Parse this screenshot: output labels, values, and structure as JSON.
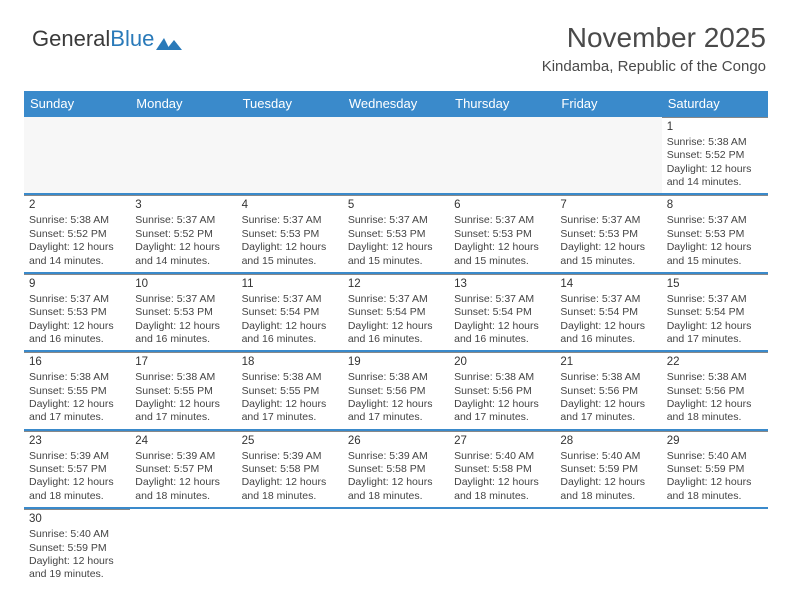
{
  "logo": {
    "part1": "General",
    "part2": "Blue"
  },
  "title": "November 2025",
  "subtitle": "Kindamba, Republic of the Congo",
  "colors": {
    "header_bg": "#3a8acb",
    "header_text": "#ffffff",
    "week_divider": "#3a8acb",
    "cell_border": "#888888",
    "text": "#444444",
    "logo_blue": "#2a7ab9"
  },
  "day_headers": [
    "Sunday",
    "Monday",
    "Tuesday",
    "Wednesday",
    "Thursday",
    "Friday",
    "Saturday"
  ],
  "weeks": [
    [
      {
        "empty": true
      },
      {
        "empty": true
      },
      {
        "empty": true
      },
      {
        "empty": true
      },
      {
        "empty": true
      },
      {
        "empty": true
      },
      {
        "day": "1",
        "sunrise": "Sunrise: 5:38 AM",
        "sunset": "Sunset: 5:52 PM",
        "daylight1": "Daylight: 12 hours",
        "daylight2": "and 14 minutes."
      }
    ],
    [
      {
        "day": "2",
        "sunrise": "Sunrise: 5:38 AM",
        "sunset": "Sunset: 5:52 PM",
        "daylight1": "Daylight: 12 hours",
        "daylight2": "and 14 minutes."
      },
      {
        "day": "3",
        "sunrise": "Sunrise: 5:37 AM",
        "sunset": "Sunset: 5:52 PM",
        "daylight1": "Daylight: 12 hours",
        "daylight2": "and 14 minutes."
      },
      {
        "day": "4",
        "sunrise": "Sunrise: 5:37 AM",
        "sunset": "Sunset: 5:53 PM",
        "daylight1": "Daylight: 12 hours",
        "daylight2": "and 15 minutes."
      },
      {
        "day": "5",
        "sunrise": "Sunrise: 5:37 AM",
        "sunset": "Sunset: 5:53 PM",
        "daylight1": "Daylight: 12 hours",
        "daylight2": "and 15 minutes."
      },
      {
        "day": "6",
        "sunrise": "Sunrise: 5:37 AM",
        "sunset": "Sunset: 5:53 PM",
        "daylight1": "Daylight: 12 hours",
        "daylight2": "and 15 minutes."
      },
      {
        "day": "7",
        "sunrise": "Sunrise: 5:37 AM",
        "sunset": "Sunset: 5:53 PM",
        "daylight1": "Daylight: 12 hours",
        "daylight2": "and 15 minutes."
      },
      {
        "day": "8",
        "sunrise": "Sunrise: 5:37 AM",
        "sunset": "Sunset: 5:53 PM",
        "daylight1": "Daylight: 12 hours",
        "daylight2": "and 15 minutes."
      }
    ],
    [
      {
        "day": "9",
        "sunrise": "Sunrise: 5:37 AM",
        "sunset": "Sunset: 5:53 PM",
        "daylight1": "Daylight: 12 hours",
        "daylight2": "and 16 minutes."
      },
      {
        "day": "10",
        "sunrise": "Sunrise: 5:37 AM",
        "sunset": "Sunset: 5:53 PM",
        "daylight1": "Daylight: 12 hours",
        "daylight2": "and 16 minutes."
      },
      {
        "day": "11",
        "sunrise": "Sunrise: 5:37 AM",
        "sunset": "Sunset: 5:54 PM",
        "daylight1": "Daylight: 12 hours",
        "daylight2": "and 16 minutes."
      },
      {
        "day": "12",
        "sunrise": "Sunrise: 5:37 AM",
        "sunset": "Sunset: 5:54 PM",
        "daylight1": "Daylight: 12 hours",
        "daylight2": "and 16 minutes."
      },
      {
        "day": "13",
        "sunrise": "Sunrise: 5:37 AM",
        "sunset": "Sunset: 5:54 PM",
        "daylight1": "Daylight: 12 hours",
        "daylight2": "and 16 minutes."
      },
      {
        "day": "14",
        "sunrise": "Sunrise: 5:37 AM",
        "sunset": "Sunset: 5:54 PM",
        "daylight1": "Daylight: 12 hours",
        "daylight2": "and 16 minutes."
      },
      {
        "day": "15",
        "sunrise": "Sunrise: 5:37 AM",
        "sunset": "Sunset: 5:54 PM",
        "daylight1": "Daylight: 12 hours",
        "daylight2": "and 17 minutes."
      }
    ],
    [
      {
        "day": "16",
        "sunrise": "Sunrise: 5:38 AM",
        "sunset": "Sunset: 5:55 PM",
        "daylight1": "Daylight: 12 hours",
        "daylight2": "and 17 minutes."
      },
      {
        "day": "17",
        "sunrise": "Sunrise: 5:38 AM",
        "sunset": "Sunset: 5:55 PM",
        "daylight1": "Daylight: 12 hours",
        "daylight2": "and 17 minutes."
      },
      {
        "day": "18",
        "sunrise": "Sunrise: 5:38 AM",
        "sunset": "Sunset: 5:55 PM",
        "daylight1": "Daylight: 12 hours",
        "daylight2": "and 17 minutes."
      },
      {
        "day": "19",
        "sunrise": "Sunrise: 5:38 AM",
        "sunset": "Sunset: 5:56 PM",
        "daylight1": "Daylight: 12 hours",
        "daylight2": "and 17 minutes."
      },
      {
        "day": "20",
        "sunrise": "Sunrise: 5:38 AM",
        "sunset": "Sunset: 5:56 PM",
        "daylight1": "Daylight: 12 hours",
        "daylight2": "and 17 minutes."
      },
      {
        "day": "21",
        "sunrise": "Sunrise: 5:38 AM",
        "sunset": "Sunset: 5:56 PM",
        "daylight1": "Daylight: 12 hours",
        "daylight2": "and 17 minutes."
      },
      {
        "day": "22",
        "sunrise": "Sunrise: 5:38 AM",
        "sunset": "Sunset: 5:56 PM",
        "daylight1": "Daylight: 12 hours",
        "daylight2": "and 18 minutes."
      }
    ],
    [
      {
        "day": "23",
        "sunrise": "Sunrise: 5:39 AM",
        "sunset": "Sunset: 5:57 PM",
        "daylight1": "Daylight: 12 hours",
        "daylight2": "and 18 minutes."
      },
      {
        "day": "24",
        "sunrise": "Sunrise: 5:39 AM",
        "sunset": "Sunset: 5:57 PM",
        "daylight1": "Daylight: 12 hours",
        "daylight2": "and 18 minutes."
      },
      {
        "day": "25",
        "sunrise": "Sunrise: 5:39 AM",
        "sunset": "Sunset: 5:58 PM",
        "daylight1": "Daylight: 12 hours",
        "daylight2": "and 18 minutes."
      },
      {
        "day": "26",
        "sunrise": "Sunrise: 5:39 AM",
        "sunset": "Sunset: 5:58 PM",
        "daylight1": "Daylight: 12 hours",
        "daylight2": "and 18 minutes."
      },
      {
        "day": "27",
        "sunrise": "Sunrise: 5:40 AM",
        "sunset": "Sunset: 5:58 PM",
        "daylight1": "Daylight: 12 hours",
        "daylight2": "and 18 minutes."
      },
      {
        "day": "28",
        "sunrise": "Sunrise: 5:40 AM",
        "sunset": "Sunset: 5:59 PM",
        "daylight1": "Daylight: 12 hours",
        "daylight2": "and 18 minutes."
      },
      {
        "day": "29",
        "sunrise": "Sunrise: 5:40 AM",
        "sunset": "Sunset: 5:59 PM",
        "daylight1": "Daylight: 12 hours",
        "daylight2": "and 18 minutes."
      }
    ],
    [
      {
        "day": "30",
        "sunrise": "Sunrise: 5:40 AM",
        "sunset": "Sunset: 5:59 PM",
        "daylight1": "Daylight: 12 hours",
        "daylight2": "and 19 minutes."
      },
      {
        "blank": true
      },
      {
        "blank": true
      },
      {
        "blank": true
      },
      {
        "blank": true
      },
      {
        "blank": true
      },
      {
        "blank": true
      }
    ]
  ]
}
